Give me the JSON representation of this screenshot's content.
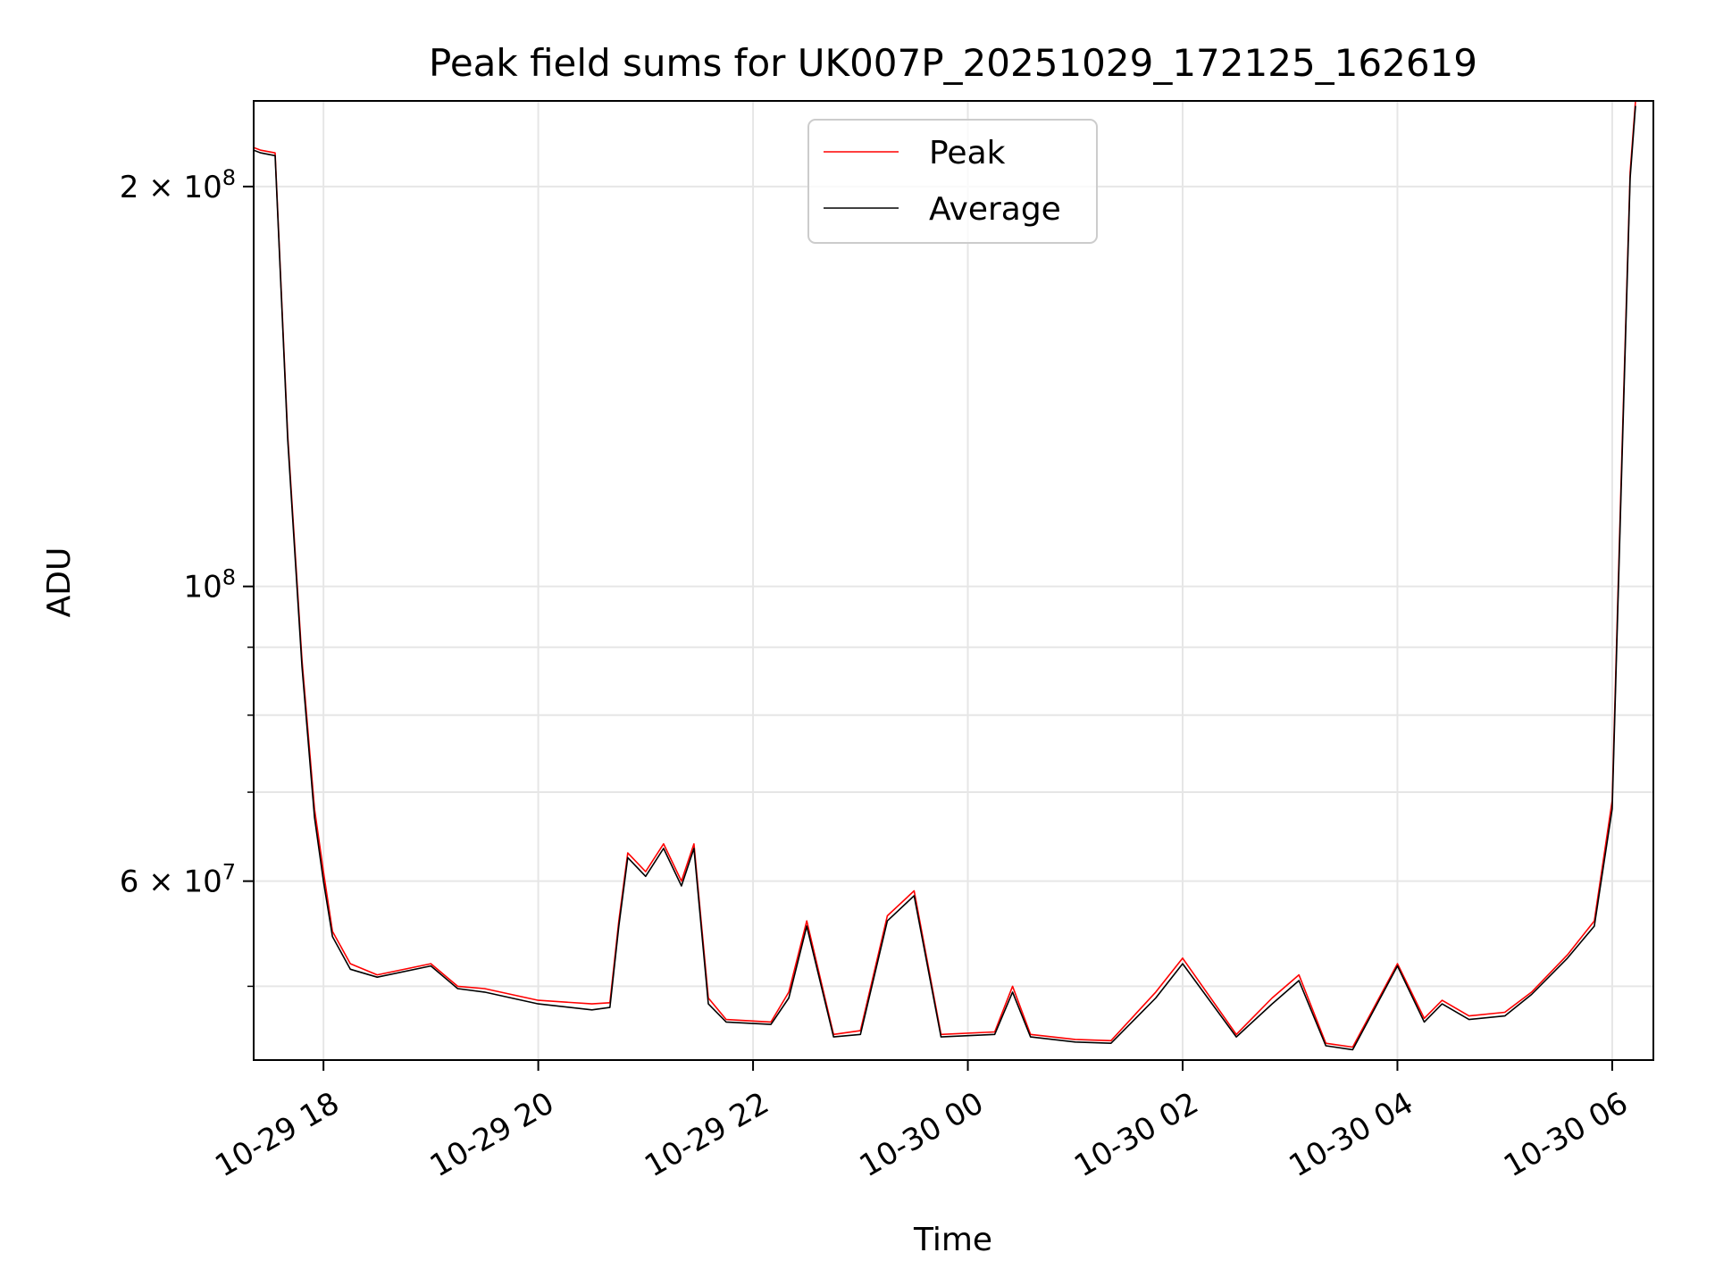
{
  "chart_data": {
    "type": "line",
    "title": "Peak field sums for UK007P_20251029_172125_162619",
    "xlabel": "Time",
    "ylabel": "ADU",
    "yscale": "log",
    "ylim": [
      44000000,
      232000000
    ],
    "xlim": [
      "2025-10-29 17:21",
      "2025-10-30 06:23"
    ],
    "grid": true,
    "legend": "upper center",
    "x_ticks": [
      {
        "t": "2025-10-29 18:00",
        "label": "10-29 18"
      },
      {
        "t": "2025-10-29 20:00",
        "label": "10-29 20"
      },
      {
        "t": "2025-10-29 22:00",
        "label": "10-29 22"
      },
      {
        "t": "2025-10-30 00:00",
        "label": "10-30 00"
      },
      {
        "t": "2025-10-30 02:00",
        "label": "10-30 02"
      },
      {
        "t": "2025-10-30 04:00",
        "label": "10-30 04"
      },
      {
        "t": "2025-10-30 06:00",
        "label": "10-30 06"
      }
    ],
    "y_ticks": [
      {
        "v": 60000000,
        "label_base": "6 × 10",
        "label_exp": "7"
      },
      {
        "v": 100000000,
        "label_base": "10",
        "label_exp": "8"
      },
      {
        "v": 200000000,
        "label_base": "2 × 10",
        "label_exp": "8"
      }
    ],
    "y_minor_ticks": [
      50000000,
      70000000,
      80000000,
      90000000
    ],
    "series": [
      {
        "name": "Peak",
        "color": "#ff0000",
        "x": [
          "2025-10-29 17:21",
          "2025-10-29 17:25",
          "2025-10-29 17:33",
          "2025-10-29 17:40",
          "2025-10-29 17:48",
          "2025-10-29 17:55",
          "2025-10-29 18:00",
          "2025-10-29 18:05",
          "2025-10-29 18:15",
          "2025-10-29 18:30",
          "2025-10-29 19:00",
          "2025-10-29 19:15",
          "2025-10-29 19:30",
          "2025-10-29 20:00",
          "2025-10-29 20:30",
          "2025-10-29 20:40",
          "2025-10-29 20:45",
          "2025-10-29 20:50",
          "2025-10-29 21:00",
          "2025-10-29 21:10",
          "2025-10-29 21:20",
          "2025-10-29 21:27",
          "2025-10-29 21:35",
          "2025-10-29 21:45",
          "2025-10-29 22:10",
          "2025-10-29 22:20",
          "2025-10-29 22:30",
          "2025-10-29 22:45",
          "2025-10-29 23:00",
          "2025-10-29 23:15",
          "2025-10-29 23:30",
          "2025-10-29 23:45",
          "2025-10-30 00:15",
          "2025-10-30 00:25",
          "2025-10-30 00:35",
          "2025-10-30 01:00",
          "2025-10-30 01:20",
          "2025-10-30 01:45",
          "2025-10-30 02:00",
          "2025-10-30 02:30",
          "2025-10-30 02:50",
          "2025-10-30 03:05",
          "2025-10-30 03:20",
          "2025-10-30 03:35",
          "2025-10-30 04:00",
          "2025-10-30 04:15",
          "2025-10-30 04:25",
          "2025-10-30 04:40",
          "2025-10-30 05:00",
          "2025-10-30 05:15",
          "2025-10-30 05:35",
          "2025-10-30 05:50",
          "2025-10-30 06:00",
          "2025-10-30 06:05",
          "2025-10-30 06:10",
          "2025-10-30 06:13"
        ],
        "values": [
          214000000,
          213000000,
          212000000,
          130000000,
          88000000,
          68000000,
          61000000,
          55000000,
          52000000,
          51000000,
          52000000,
          50000000,
          49800000,
          48800000,
          48500000,
          48600000,
          56000000,
          63000000,
          61000000,
          64000000,
          60000000,
          64000000,
          49000000,
          47200000,
          47000000,
          49500000,
          56000000,
          46000000,
          46300000,
          56500000,
          59000000,
          46000000,
          46200000,
          50000000,
          46000000,
          45600000,
          45500000,
          49500000,
          52500000,
          46000000,
          49000000,
          51000000,
          45300000,
          45000000,
          52000000,
          47300000,
          48800000,
          47500000,
          47800000,
          49500000,
          52800000,
          56000000,
          69000000,
          120000000,
          205000000,
          232000000
        ]
      },
      {
        "name": "Average",
        "color": "#000000",
        "x": [
          "2025-10-29 17:21",
          "2025-10-29 17:25",
          "2025-10-29 17:33",
          "2025-10-29 17:40",
          "2025-10-29 17:48",
          "2025-10-29 17:55",
          "2025-10-29 18:00",
          "2025-10-29 18:05",
          "2025-10-29 18:15",
          "2025-10-29 18:30",
          "2025-10-29 19:00",
          "2025-10-29 19:15",
          "2025-10-29 19:30",
          "2025-10-29 20:00",
          "2025-10-29 20:30",
          "2025-10-29 20:40",
          "2025-10-29 20:45",
          "2025-10-29 20:50",
          "2025-10-29 21:00",
          "2025-10-29 21:10",
          "2025-10-29 21:20",
          "2025-10-29 21:27",
          "2025-10-29 21:35",
          "2025-10-29 21:45",
          "2025-10-29 22:10",
          "2025-10-29 22:20",
          "2025-10-29 22:30",
          "2025-10-29 22:45",
          "2025-10-29 23:00",
          "2025-10-29 23:15",
          "2025-10-29 23:30",
          "2025-10-29 23:45",
          "2025-10-30 00:15",
          "2025-10-30 00:25",
          "2025-10-30 00:35",
          "2025-10-30 01:00",
          "2025-10-30 01:20",
          "2025-10-30 01:45",
          "2025-10-30 02:00",
          "2025-10-30 02:30",
          "2025-10-30 02:50",
          "2025-10-30 03:05",
          "2025-10-30 03:20",
          "2025-10-30 03:35",
          "2025-10-30 04:00",
          "2025-10-30 04:15",
          "2025-10-30 04:25",
          "2025-10-30 04:40",
          "2025-10-30 05:00",
          "2025-10-30 05:15",
          "2025-10-30 05:35",
          "2025-10-30 05:50",
          "2025-10-30 06:00",
          "2025-10-30 06:05",
          "2025-10-30 06:10",
          "2025-10-30 06:13"
        ],
        "values": [
          213000000,
          212000000,
          211000000,
          129000000,
          87000000,
          67000000,
          60000000,
          54500000,
          51500000,
          50800000,
          51800000,
          49800000,
          49500000,
          48500000,
          48000000,
          48200000,
          55500000,
          62500000,
          60500000,
          63500000,
          59500000,
          63500000,
          48500000,
          47000000,
          46800000,
          49000000,
          55500000,
          45800000,
          46000000,
          56000000,
          58500000,
          45800000,
          46000000,
          49500000,
          45800000,
          45400000,
          45300000,
          49000000,
          52000000,
          45800000,
          48500000,
          50500000,
          45100000,
          44800000,
          51800000,
          47000000,
          48500000,
          47200000,
          47500000,
          49300000,
          52500000,
          55500000,
          68000000,
          118000000,
          203000000,
          230000000
        ]
      }
    ]
  }
}
